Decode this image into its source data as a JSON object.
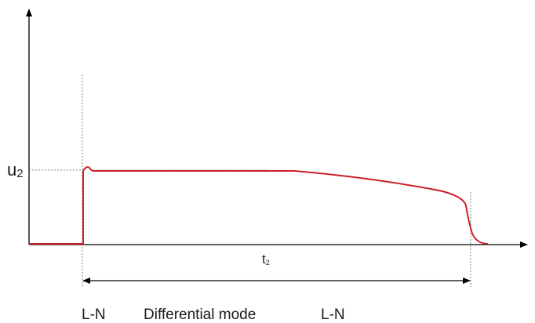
{
  "diagram": {
    "y_label": {
      "main": "u",
      "sub": "2"
    },
    "x_label": {
      "main": "t",
      "sub": "2"
    },
    "caption": {
      "left": "L-N",
      "middle": "Differential mode",
      "right": "L-N"
    }
  },
  "colors": {
    "signal": "#cc1f26",
    "axes": "#000000",
    "dotted": "#555555"
  }
}
